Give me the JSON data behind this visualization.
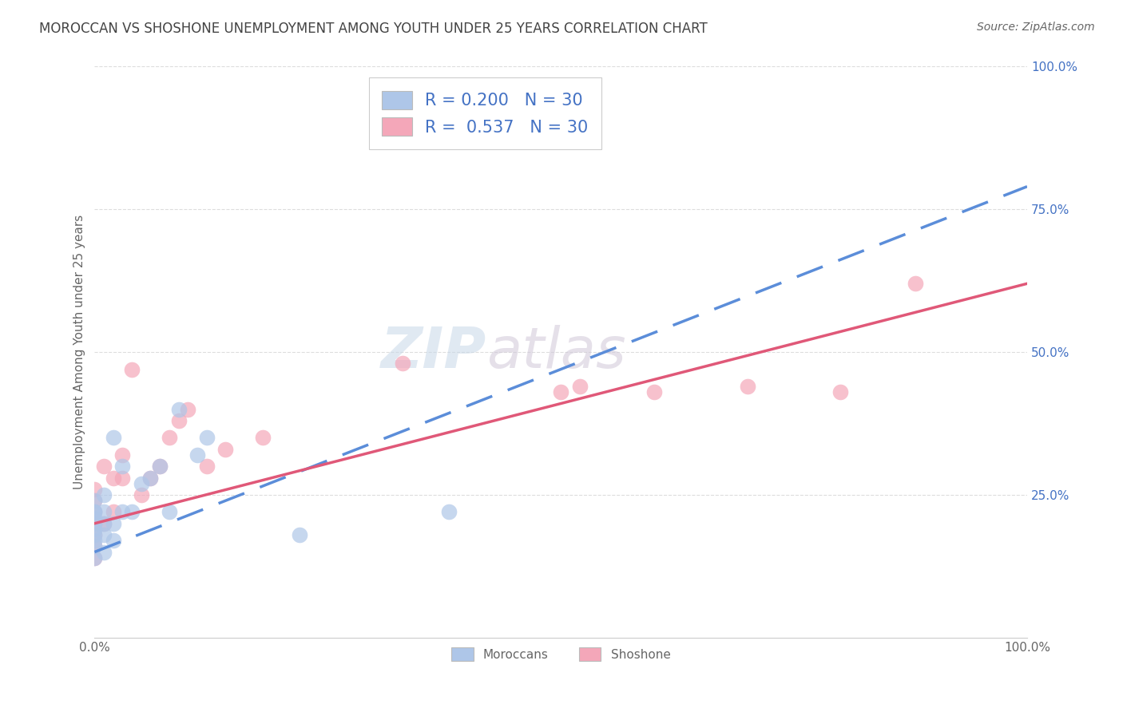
{
  "title": "MOROCCAN VS SHOSHONE UNEMPLOYMENT AMONG YOUTH UNDER 25 YEARS CORRELATION CHART",
  "source": "Source: ZipAtlas.com",
  "ylabel": "Unemployment Among Youth under 25 years",
  "xlim": [
    0,
    1.0
  ],
  "ylim": [
    0,
    1.0
  ],
  "moroccan_color": "#aec6e8",
  "shoshone_color": "#f4a7b9",
  "moroccan_line_color": "#5b8dd9",
  "shoshone_line_color": "#e05878",
  "moroccan_scatter_x": [
    0.0,
    0.0,
    0.0,
    0.0,
    0.0,
    0.0,
    0.0,
    0.0,
    0.0,
    0.0,
    0.01,
    0.01,
    0.01,
    0.01,
    0.01,
    0.02,
    0.02,
    0.02,
    0.03,
    0.03,
    0.04,
    0.05,
    0.06,
    0.07,
    0.08,
    0.09,
    0.11,
    0.12,
    0.22,
    0.38
  ],
  "moroccan_scatter_y": [
    0.14,
    0.16,
    0.17,
    0.18,
    0.19,
    0.2,
    0.21,
    0.22,
    0.22,
    0.24,
    0.15,
    0.18,
    0.2,
    0.22,
    0.25,
    0.17,
    0.2,
    0.35,
    0.22,
    0.3,
    0.22,
    0.27,
    0.28,
    0.3,
    0.22,
    0.4,
    0.32,
    0.35,
    0.18,
    0.22
  ],
  "shoshone_scatter_x": [
    0.0,
    0.0,
    0.0,
    0.0,
    0.0,
    0.0,
    0.0,
    0.01,
    0.01,
    0.02,
    0.02,
    0.03,
    0.03,
    0.04,
    0.05,
    0.06,
    0.07,
    0.08,
    0.09,
    0.1,
    0.12,
    0.14,
    0.18,
    0.33,
    0.5,
    0.52,
    0.6,
    0.7,
    0.8,
    0.88
  ],
  "shoshone_scatter_y": [
    0.14,
    0.16,
    0.18,
    0.2,
    0.22,
    0.24,
    0.26,
    0.2,
    0.3,
    0.22,
    0.28,
    0.28,
    0.32,
    0.47,
    0.25,
    0.28,
    0.3,
    0.35,
    0.38,
    0.4,
    0.3,
    0.33,
    0.35,
    0.48,
    0.43,
    0.44,
    0.43,
    0.44,
    0.43,
    0.62
  ],
  "moroccan_line": [
    0.15,
    0.79
  ],
  "shoshone_line": [
    0.2,
    0.62
  ],
  "background_color": "#ffffff",
  "title_color": "#444444",
  "axis_label_color": "#666666",
  "tick_color_right": "#4472c4",
  "grid_color": "#dddddd",
  "title_fontsize": 12,
  "label_fontsize": 11,
  "tick_fontsize": 11,
  "source_fontsize": 10,
  "legend_fontsize": 15
}
